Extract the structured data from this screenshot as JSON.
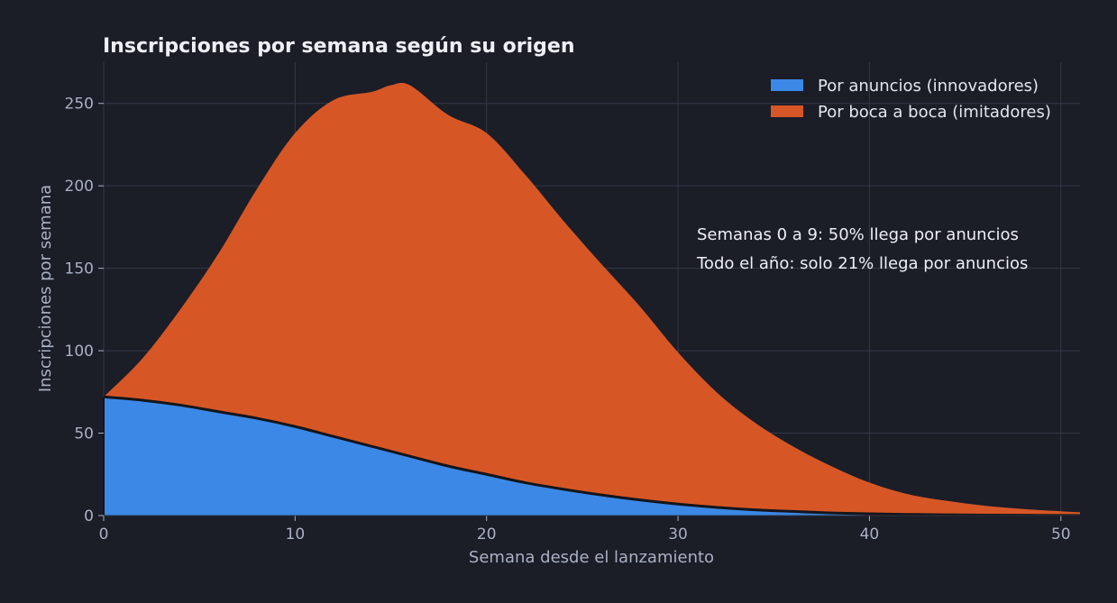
{
  "chart_data": {
    "type": "area",
    "stacked": true,
    "title": "Inscripciones por semana según su origen",
    "xlabel": "Semana desde el lanzamiento",
    "ylabel": "Inscripciones por semana",
    "xlim": [
      0,
      51
    ],
    "ylim": [
      0,
      275
    ],
    "xticks": [
      0,
      10,
      20,
      30,
      40,
      50
    ],
    "yticks": [
      0,
      50,
      100,
      150,
      200,
      250
    ],
    "grid": true,
    "legend_position": "top-right",
    "x": [
      0,
      2,
      4,
      6,
      8,
      10,
      12,
      14,
      15,
      16,
      18,
      20,
      22,
      24,
      26,
      28,
      30,
      32,
      34,
      36,
      38,
      40,
      42,
      44,
      46,
      48,
      50,
      51
    ],
    "series": [
      {
        "name": "Por anuncios (innovadores)",
        "color": "#3b88e6",
        "values": [
          72,
          70,
          67,
          63,
          59,
          54,
          48,
          42,
          39,
          36,
          30,
          25,
          20,
          16,
          12.5,
          9.5,
          7,
          5,
          3.5,
          2.5,
          1.6,
          1.1,
          0.7,
          0.5,
          0.3,
          0.2,
          0.1,
          0.1
        ]
      },
      {
        "name": "Por boca a boca (imitadores)",
        "color": "#d65725",
        "values": [
          0,
          25,
          58,
          96,
          139,
          178,
          204,
          215,
          222,
          225,
          213,
          207,
          187,
          163,
          140,
          117.5,
          92,
          70,
          53,
          39.5,
          28.4,
          18.9,
          12.3,
          8.5,
          5.7,
          3.8,
          2.5,
          1.9
        ]
      }
    ],
    "annotations": [
      "Semanas 0 a 9: 50% llega por anuncios",
      "Todo el año: solo 21% llega por anuncios"
    ]
  }
}
